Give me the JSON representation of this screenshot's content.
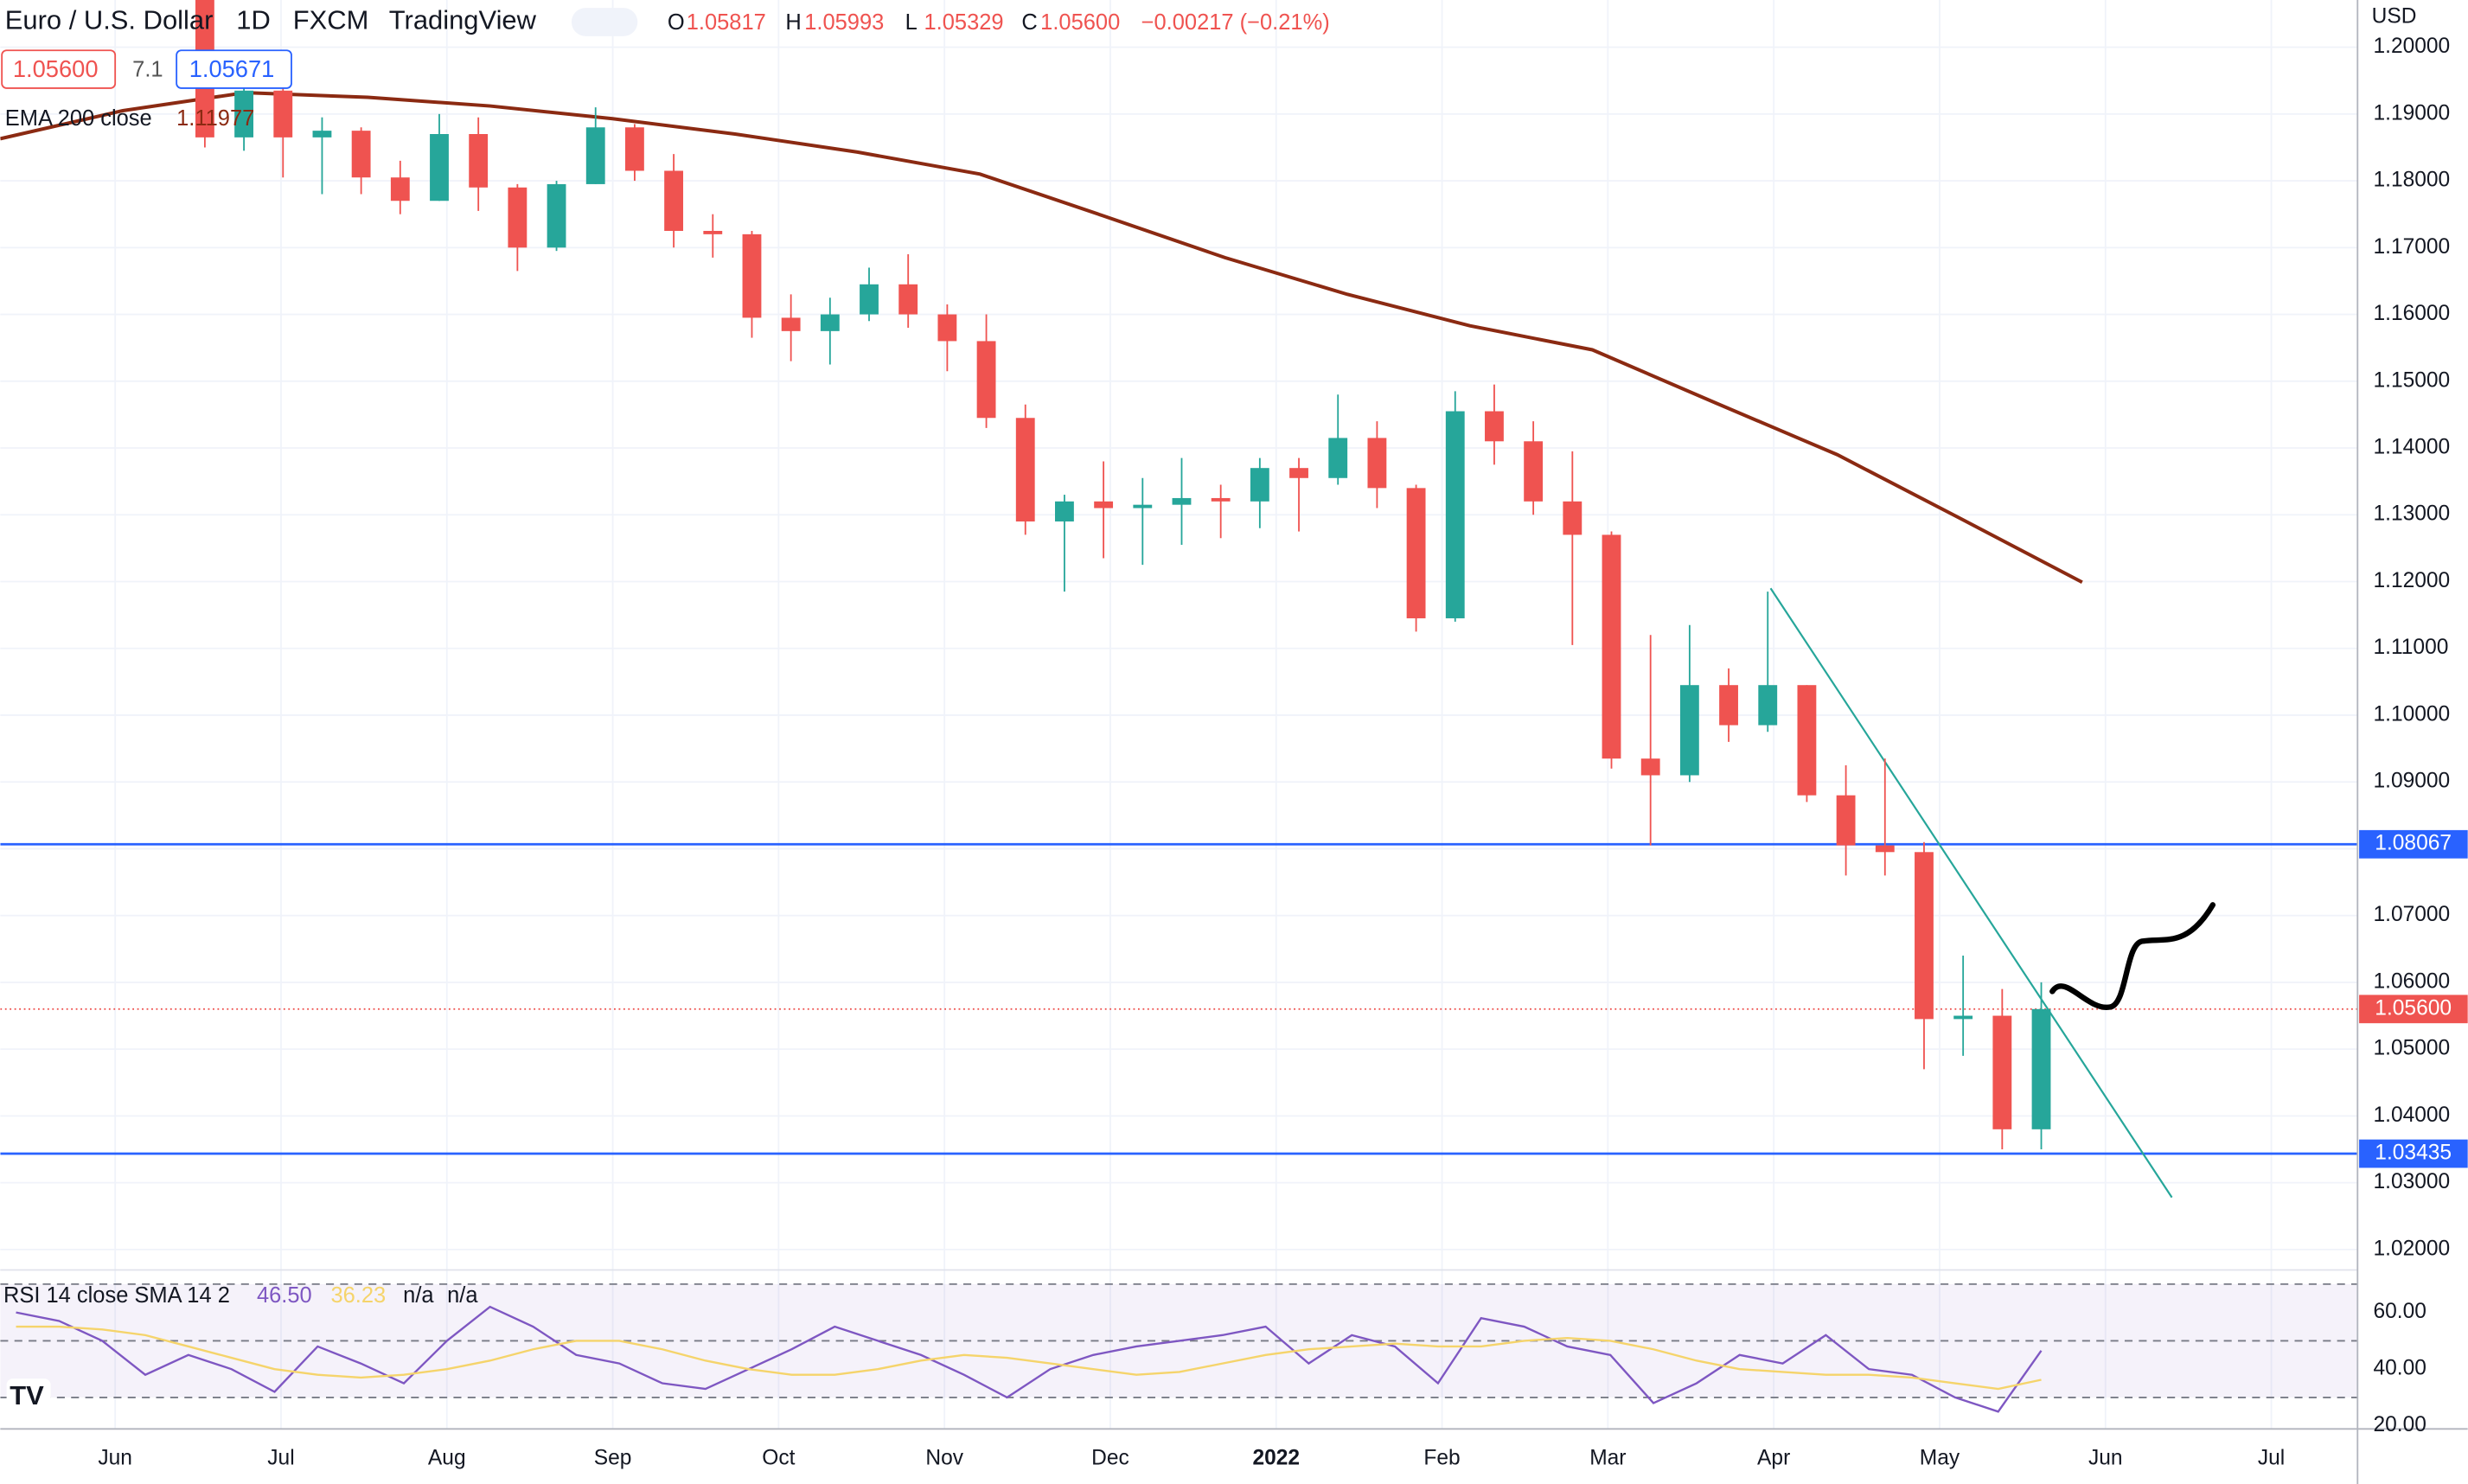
{
  "header": {
    "symbol": "Euro / U.S. Dollar",
    "interval": "1D",
    "exchange": "FXCM",
    "source": "TradingView",
    "ohlc": [
      {
        "key": "O",
        "value": "1.05817"
      },
      {
        "key": "H",
        "value": "1.05993"
      },
      {
        "key": "L",
        "value": "1.05329"
      },
      {
        "key": "C",
        "value": "1.05600"
      }
    ],
    "change": "−0.00217 (−0.21%)",
    "sell": "1.05600",
    "spread": "7.1",
    "buy": "1.05671",
    "currency": "USD"
  },
  "chart_data": [
    {
      "type": "candlestick",
      "name": "EURUSD",
      "up_color": "#26a69a",
      "down_color": "#ef5350",
      "open": [
        1.212,
        1.1865,
        1.1935,
        1.1865,
        1.1875,
        1.1805,
        1.177,
        1.187,
        1.179,
        1.17,
        1.1795,
        1.188,
        1.1815,
        1.1725,
        1.172,
        1.1595,
        1.1575,
        1.16,
        1.1645,
        1.16,
        1.156,
        1.1445,
        1.129,
        1.132,
        1.131,
        1.1315,
        1.1325,
        1.132,
        1.137,
        1.1355,
        1.1415,
        1.134,
        1.1145,
        1.1455,
        1.141,
        1.132,
        1.127,
        1.0935,
        1.091,
        1.1045,
        1.0985,
        1.1045,
        1.088,
        1.0805,
        1.0795,
        1.0545,
        1.055,
        1.038
      ],
      "high": [
        1.2145,
        1.1975,
        1.1975,
        1.1895,
        1.188,
        1.183,
        1.19,
        1.1895,
        1.1795,
        1.18,
        1.191,
        1.1885,
        1.184,
        1.175,
        1.1725,
        1.163,
        1.1625,
        1.167,
        1.169,
        1.1615,
        1.16,
        1.1465,
        1.133,
        1.138,
        1.1355,
        1.1385,
        1.1345,
        1.1385,
        1.1385,
        1.148,
        1.144,
        1.1345,
        1.1485,
        1.1495,
        1.144,
        1.1395,
        1.1275,
        1.112,
        1.1135,
        1.107,
        1.1185,
        1.1045,
        1.0925,
        1.0935,
        1.081,
        1.064,
        1.059,
        1.06
      ],
      "low": [
        1.185,
        1.1845,
        1.1805,
        1.178,
        1.178,
        1.175,
        1.177,
        1.1755,
        1.1665,
        1.1695,
        1.1795,
        1.18,
        1.17,
        1.1685,
        1.1565,
        1.153,
        1.1525,
        1.159,
        1.158,
        1.1515,
        1.143,
        1.127,
        1.1185,
        1.1235,
        1.1225,
        1.1255,
        1.1265,
        1.128,
        1.1275,
        1.1345,
        1.131,
        1.1125,
        1.114,
        1.1375,
        1.13,
        1.1105,
        1.092,
        1.0805,
        1.09,
        1.096,
        1.0975,
        1.087,
        1.076,
        1.076,
        1.047,
        1.049,
        1.035,
        1.035
      ],
      "close": [
        1.1865,
        1.1935,
        1.1865,
        1.1875,
        1.1805,
        1.177,
        1.187,
        1.179,
        1.17,
        1.1795,
        1.188,
        1.1815,
        1.1725,
        1.172,
        1.1595,
        1.1575,
        1.16,
        1.1645,
        1.16,
        1.156,
        1.1445,
        1.129,
        1.132,
        1.131,
        1.1315,
        1.1325,
        1.132,
        1.137,
        1.1355,
        1.1415,
        1.134,
        1.1145,
        1.1455,
        1.141,
        1.132,
        1.127,
        1.0935,
        1.091,
        1.1045,
        1.0985,
        1.1045,
        1.088,
        1.0805,
        1.0795,
        1.0545,
        1.055,
        1.038,
        1.056
      ],
      "ema": {
        "label": "EMA 200 close",
        "last": "1.11977",
        "color": "#8b2a12",
        "values": [
          1.1863,
          1.1905,
          1.1932,
          1.1925,
          1.1912,
          1.1893,
          1.187,
          1.1843,
          1.181,
          1.1748,
          1.1685,
          1.163,
          1.1583,
          1.1547,
          1.1468,
          1.139,
          1.1295,
          1.1199
        ]
      },
      "hlines": [
        {
          "value": 1.08067,
          "label": "1.08067",
          "color": "#2962ff"
        },
        {
          "value": 1.03435,
          "label": "1.03435",
          "color": "#2962ff"
        }
      ],
      "price_line": {
        "value": 1.056,
        "label": "1.05600",
        "color": "#ef5350"
      },
      "trendline": [
        1.119,
        1.0278
      ],
      "ylim": [
        1.02,
        1.2
      ],
      "yticks": [
        {
          "value": 1.2,
          "label": "1.20000"
        },
        {
          "value": 1.19,
          "label": "1.19000"
        },
        {
          "value": 1.18,
          "label": "1.18000"
        },
        {
          "value": 1.17,
          "label": "1.17000"
        },
        {
          "value": 1.16,
          "label": "1.16000"
        },
        {
          "value": 1.15,
          "label": "1.15000"
        },
        {
          "value": 1.14,
          "label": "1.14000"
        },
        {
          "value": 1.13,
          "label": "1.13000"
        },
        {
          "value": 1.12,
          "label": "1.12000"
        },
        {
          "value": 1.11,
          "label": "1.11000"
        },
        {
          "value": 1.1,
          "label": "1.10000"
        },
        {
          "value": 1.09,
          "label": "1.09000"
        },
        {
          "value": 1.08,
          "label": "1.08000"
        },
        {
          "value": 1.07,
          "label": "1.07000"
        },
        {
          "value": 1.06,
          "label": "1.06000"
        },
        {
          "value": 1.05,
          "label": "1.05000"
        },
        {
          "value": 1.04,
          "label": "1.04000"
        },
        {
          "value": 1.03,
          "label": "1.03000"
        },
        {
          "value": 1.02,
          "label": "1.02000"
        }
      ],
      "xticks": [
        "Jun",
        "Jul",
        "Aug",
        "Sep",
        "Oct",
        "Nov",
        "Dec",
        "2022",
        "Feb",
        "Mar",
        "Apr",
        "May",
        "Jun",
        "Jul"
      ]
    },
    {
      "type": "line",
      "title": "RSI 14 close SMA 14 2",
      "series": [
        {
          "name": "RSI",
          "color": "#7e57c2",
          "last": 46.5,
          "last_label": "46.50",
          "values": [
            60,
            57,
            50,
            38,
            45,
            40,
            32,
            48,
            42,
            35,
            50,
            62,
            55,
            45,
            42,
            35,
            33,
            40,
            47,
            55,
            50,
            45,
            38,
            30,
            40,
            45,
            48,
            50,
            52,
            55,
            42,
            52,
            48,
            35,
            58,
            55,
            48,
            45,
            28,
            35,
            45,
            42,
            52,
            40,
            38,
            30,
            25,
            46.5
          ]
        },
        {
          "name": "SMA",
          "color": "#f5d46b",
          "last": 36.23,
          "last_label": "36.23",
          "values": [
            55,
            55,
            54,
            52,
            48,
            44,
            40,
            38,
            37,
            38,
            40,
            43,
            47,
            50,
            50,
            47,
            43,
            40,
            38,
            38,
            40,
            43,
            45,
            44,
            42,
            40,
            38,
            39,
            42,
            45,
            47,
            48,
            49,
            48,
            48,
            50,
            51,
            50,
            47,
            43,
            40,
            39,
            38,
            38,
            37,
            35,
            33,
            36.23
          ]
        }
      ],
      "na": [
        "n/a",
        "n/a"
      ],
      "ylim": [
        20,
        70
      ],
      "bands": [
        70,
        50,
        30
      ],
      "yticks": [
        {
          "value": 60,
          "label": "60.00"
        },
        {
          "value": 40,
          "label": "40.00"
        },
        {
          "value": 20,
          "label": "20.00"
        }
      ]
    }
  ]
}
